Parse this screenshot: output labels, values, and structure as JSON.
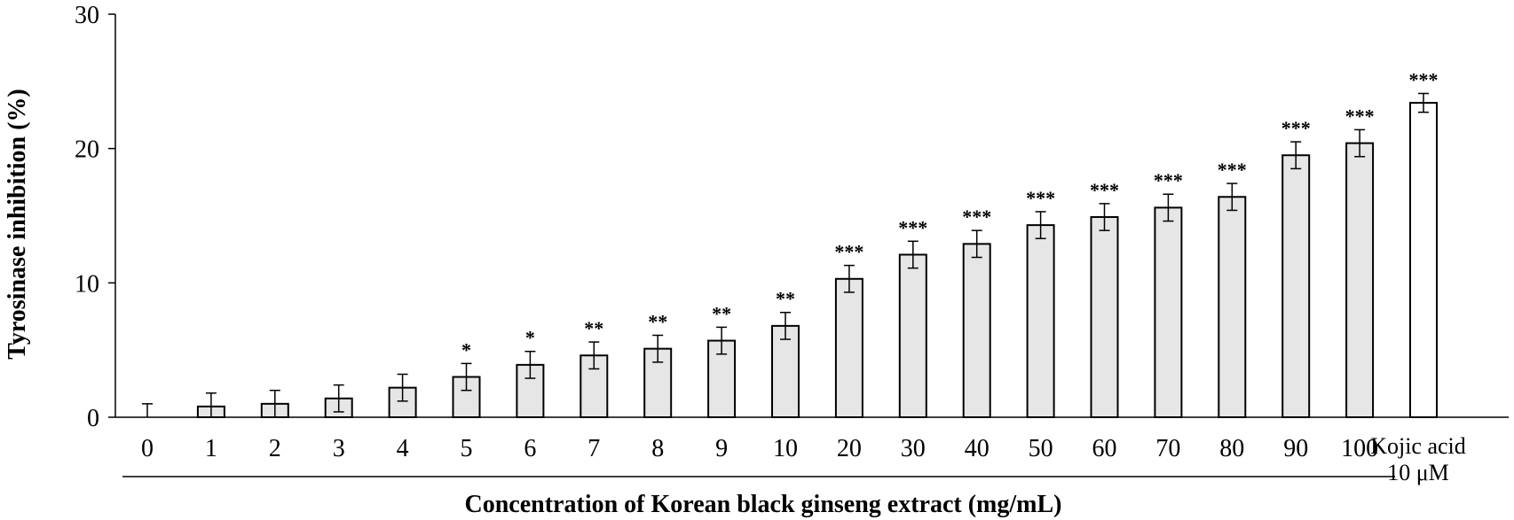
{
  "chart_data": {
    "type": "bar",
    "title": "",
    "xlabel": "Concentration of Korean black ginseng extract (mg/mL)",
    "ylabel": "Tyrosinase inhibition (%)",
    "ylim": [
      0,
      30
    ],
    "yticks": [
      "0",
      "10",
      "20",
      "30"
    ],
    "ytick_values": [
      0,
      10,
      20,
      30
    ],
    "grid": false,
    "legend": "none",
    "categories": [
      "0",
      "1",
      "2",
      "3",
      "4",
      "5",
      "6",
      "7",
      "8",
      "9",
      "10",
      "20",
      "30",
      "40",
      "50",
      "60",
      "70",
      "80",
      "90",
      "100",
      "Kojic acid 10 μM"
    ],
    "values": [
      0,
      0.8,
      1.0,
      1.4,
      2.2,
      3.0,
      3.9,
      4.6,
      5.1,
      5.7,
      6.8,
      10.3,
      12.1,
      12.9,
      14.3,
      14.9,
      15.6,
      16.4,
      19.5,
      20.4,
      23.4
    ],
    "errors": [
      1.0,
      1.0,
      1.0,
      1.0,
      1.0,
      1.0,
      1.0,
      1.0,
      1.0,
      1.0,
      1.0,
      1.0,
      1.0,
      1.0,
      1.0,
      1.0,
      1.0,
      1.0,
      1.0,
      1.0,
      0.7
    ],
    "significance": [
      "",
      "",
      "",
      "",
      "",
      "*",
      "*",
      "**",
      "**",
      "**",
      "**",
      "***",
      "***",
      "***",
      "***",
      "***",
      "***",
      "***",
      "***",
      "***",
      "***"
    ],
    "kojic_label_lines": [
      "Kojic acid",
      "10 μM"
    ],
    "colors": {
      "extract_bar": "#e6e6e6",
      "kojic_bar": "#ffffff",
      "outline": "#000000"
    }
  }
}
